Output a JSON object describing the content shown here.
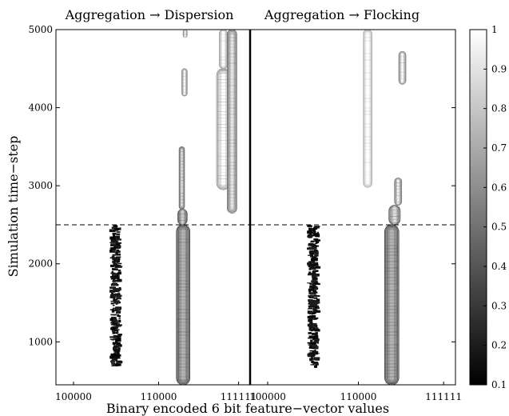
{
  "chart_data": {
    "type": "heatmap",
    "panels": [
      {
        "title": "Aggregation → Dispersion",
        "x_tick_labels": [
          "100000",
          "110000",
          "111111"
        ],
        "x_tick_fracs": [
          0.0,
          0.5,
          0.97
        ],
        "regions": [
          {
            "x": [
              0.42,
              0.48
            ],
            "y": [
              700,
              2500
            ],
            "intensity": 0.15,
            "style": "noisy"
          },
          {
            "x": [
              0.9,
              1.0
            ],
            "y": [
              450,
              2500
            ],
            "intensity": 0.45,
            "style": "contour"
          },
          {
            "x": [
              0.91,
              0.98
            ],
            "y": [
              2500,
              2700
            ],
            "intensity": 0.55,
            "style": "contour"
          },
          {
            "x": [
              0.92,
              0.96
            ],
            "y": [
              2700,
              3500
            ],
            "intensity": 0.65,
            "style": "contour"
          },
          {
            "x": [
              0.94,
              0.98
            ],
            "y": [
              4150,
              4500
            ],
            "intensity": 0.75,
            "style": "contour"
          },
          {
            "x": [
              0.95,
              0.98
            ],
            "y": [
              4900,
              5000
            ],
            "intensity": 0.75,
            "style": "contour"
          },
          {
            "x": [
              1.2,
              1.3
            ],
            "y": [
              2950,
              4500
            ],
            "intensity": 0.75,
            "style": "contour"
          },
          {
            "x": [
              1.22,
              1.28
            ],
            "y": [
              4500,
              5000
            ],
            "intensity": 0.85,
            "style": "contour"
          },
          {
            "x": [
              1.28,
              1.35
            ],
            "y": [
              2650,
              5000
            ],
            "intensity": 0.65,
            "style": "contour"
          }
        ]
      },
      {
        "title": "Aggregation →  Flocking",
        "x_tick_labels": [
          "100000",
          "110000",
          "111111"
        ],
        "x_tick_fracs": [
          0.0,
          0.5,
          0.97
        ],
        "regions": [
          {
            "x": [
              0.42,
              0.48
            ],
            "y": [
              700,
              2500
            ],
            "intensity": 0.15,
            "style": "noisy"
          },
          {
            "x": [
              0.95,
              1.05
            ],
            "y": [
              450,
              2500
            ],
            "intensity": 0.45,
            "style": "contour"
          },
          {
            "x": [
              0.98,
              1.06
            ],
            "y": [
              2500,
              2750
            ],
            "intensity": 0.6,
            "style": "contour"
          },
          {
            "x": [
              1.02,
              1.07
            ],
            "y": [
              2750,
              3100
            ],
            "intensity": 0.7,
            "style": "contour"
          },
          {
            "x": [
              0.8,
              0.86
            ],
            "y": [
              2980,
              5000
            ],
            "intensity": 0.9,
            "style": "contour"
          },
          {
            "x": [
              1.05,
              1.1
            ],
            "y": [
              4300,
              4720
            ],
            "intensity": 0.75,
            "style": "contour"
          }
        ]
      }
    ],
    "xlabel": "Binary encoded 6 bit feature−vector values",
    "ylabel": "Simulation time−step",
    "ylim": [
      450,
      5000
    ],
    "y_ticks": [
      1000,
      2000,
      3000,
      4000,
      5000
    ],
    "dashed_line_y": 2500,
    "colorbar": {
      "range": [
        0.1,
        1
      ],
      "ticks": [
        "0.1",
        "0.2",
        "0.3",
        "0.4",
        "0.5",
        "0.6",
        "0.7",
        "0.8",
        "0.9",
        "1"
      ],
      "colormap": "gray"
    }
  }
}
